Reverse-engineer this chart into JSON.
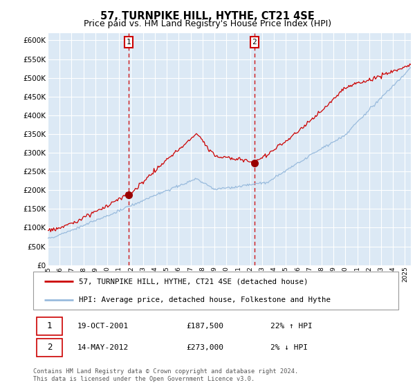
{
  "title": "57, TURNPIKE HILL, HYTHE, CT21 4SE",
  "subtitle": "Price paid vs. HM Land Registry's House Price Index (HPI)",
  "ylim": [
    0,
    620000
  ],
  "yticks": [
    0,
    50000,
    100000,
    150000,
    200000,
    250000,
    300000,
    350000,
    400000,
    450000,
    500000,
    550000,
    600000
  ],
  "xlim_start": 1995.0,
  "xlim_end": 2025.5,
  "background_color": "#dce9f5",
  "grid_color": "#ffffff",
  "red_line_color": "#cc0000",
  "blue_line_color": "#99bbdd",
  "sale1_x": 2001.8,
  "sale1_y": 187500,
  "sale2_x": 2012.37,
  "sale2_y": 273000,
  "marker_color": "#990000",
  "dashed_line_color": "#cc0000",
  "legend_label_red": "57, TURNPIKE HILL, HYTHE, CT21 4SE (detached house)",
  "legend_label_blue": "HPI: Average price, detached house, Folkestone and Hythe",
  "footer": "Contains HM Land Registry data © Crown copyright and database right 2024.\nThis data is licensed under the Open Government Licence v3.0."
}
